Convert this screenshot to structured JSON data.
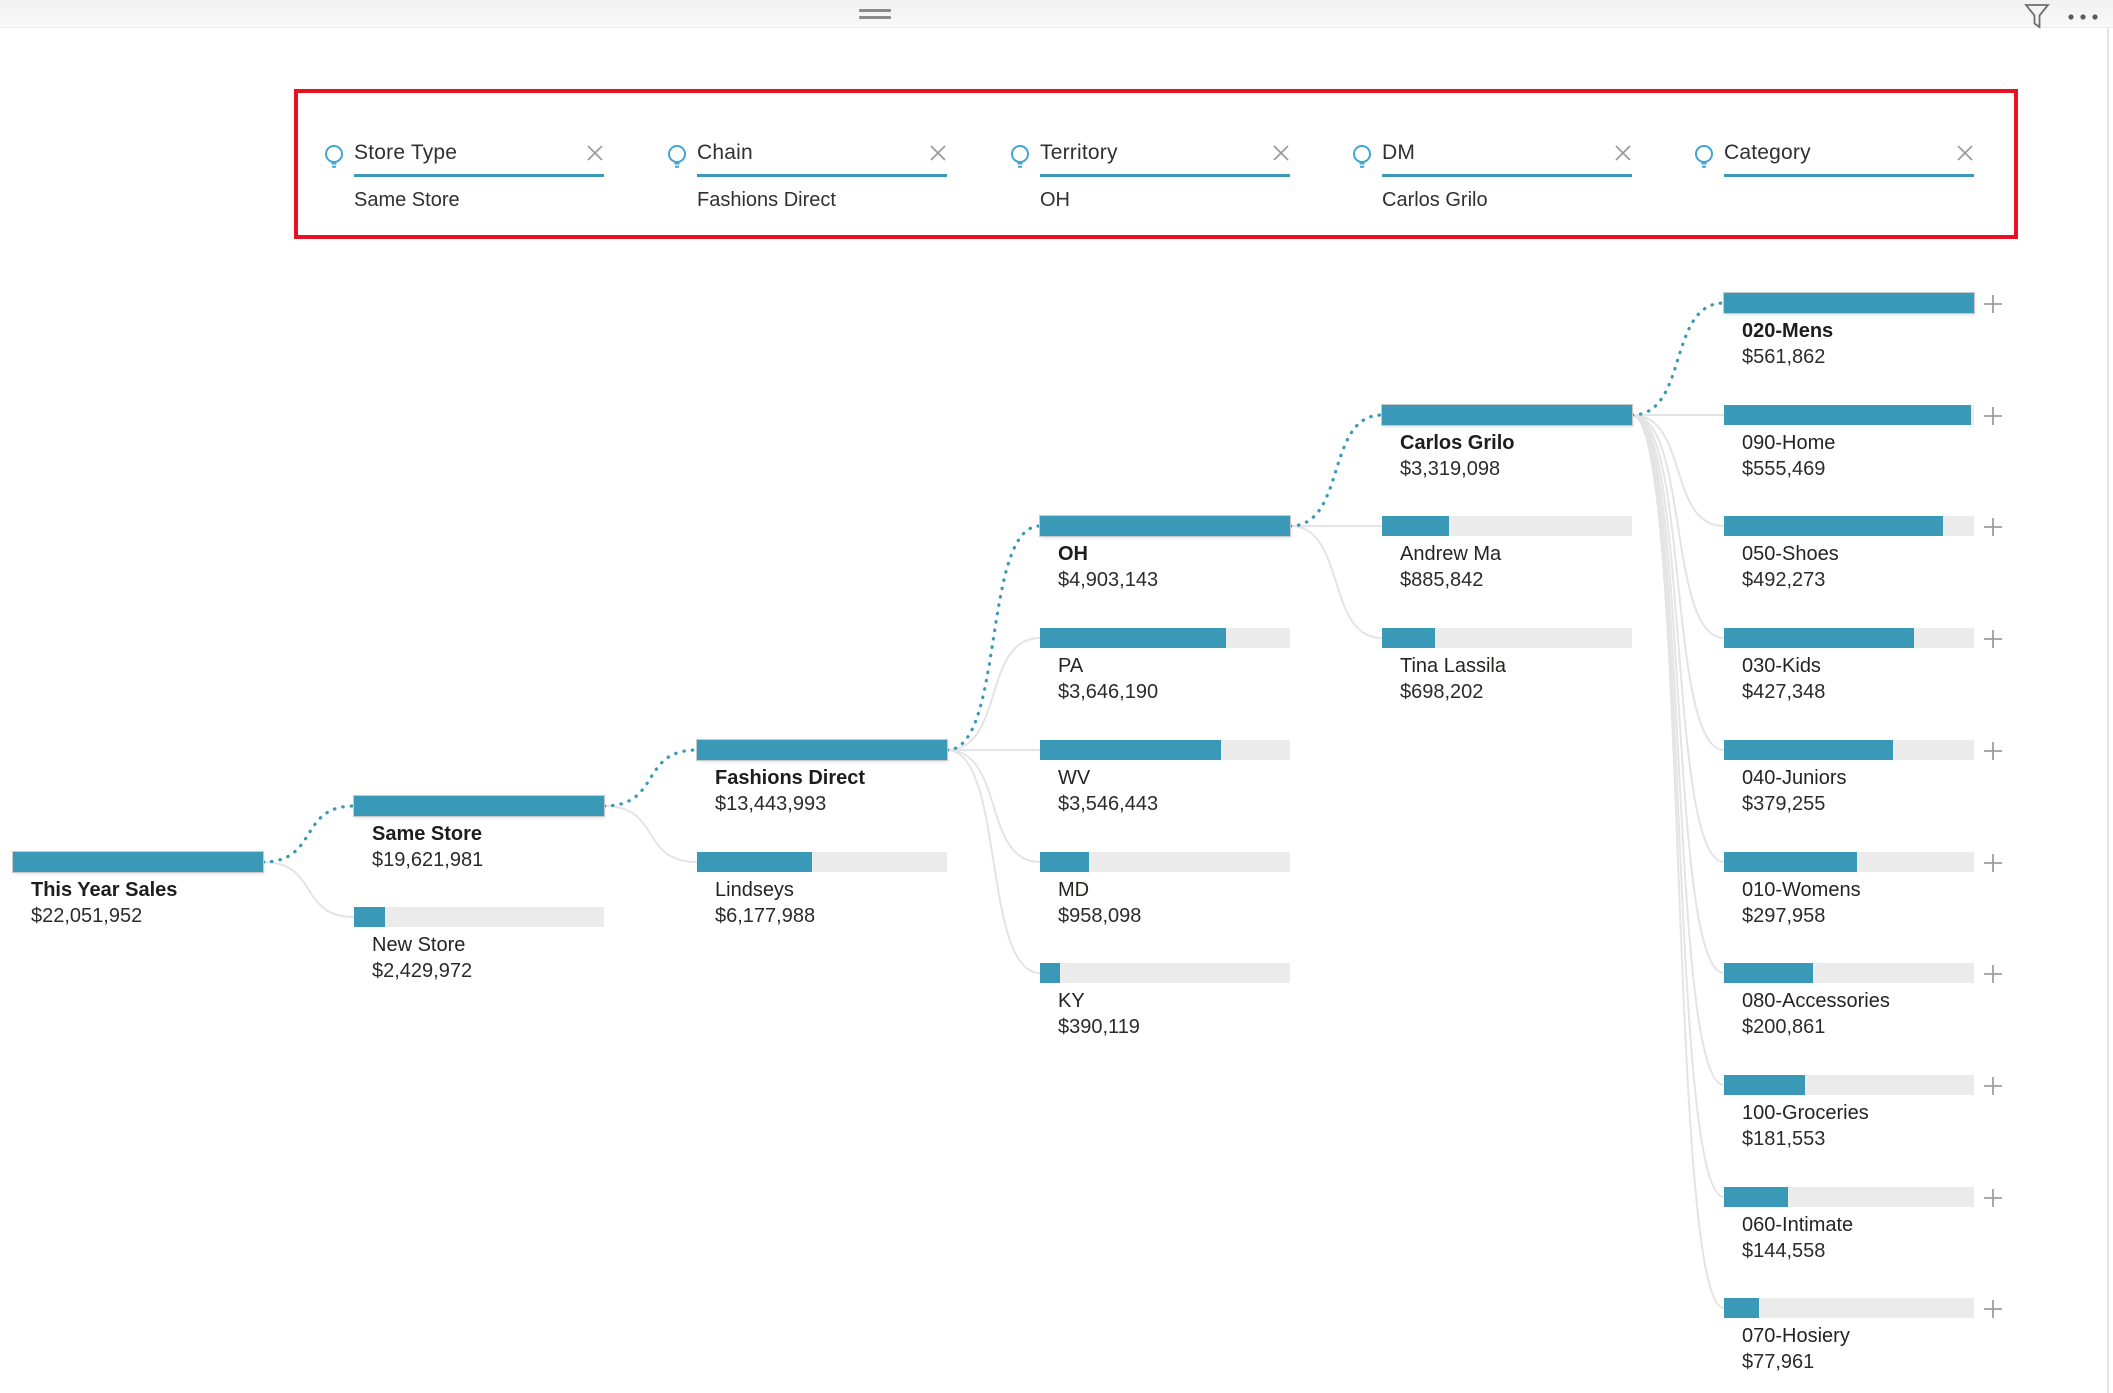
{
  "top_bar": {
    "drag_handle": "visual-resize-handle",
    "filter_icon": "filter-funnel",
    "more_options_icon": "ellipsis"
  },
  "colors": {
    "bar": "#3a99b7",
    "bar_track": "#ebebeb",
    "connector": "#e4e4e4",
    "selected_path": "#3a99b7",
    "accent_underline": "#3a99b7",
    "highlight_border": "#e81123",
    "icon_gray": "#6e6e6e",
    "bulb_blue": "#41a4d4"
  },
  "breadcrumbs": {
    "items": [
      {
        "field": "Store Type",
        "value": "Same Store"
      },
      {
        "field": "Chain",
        "value": "Fashions Direct"
      },
      {
        "field": "Territory",
        "value": "OH"
      },
      {
        "field": "DM",
        "value": "Carlos Grilo"
      },
      {
        "field": "Category",
        "value": ""
      }
    ]
  },
  "chart_data": {
    "type": "decomposition-tree",
    "measure": "This Year Sales",
    "total_value": 22051952,
    "levels": [
      "Store Type",
      "Chain",
      "Territory",
      "DM",
      "Category"
    ],
    "nodes": [
      {
        "id": "this-year-sales",
        "parent": null,
        "field": "Total",
        "label": "This Year Sales",
        "value": 22051952,
        "value_text": "$22,051,952",
        "pct": 100,
        "col": 0,
        "row": 5,
        "bold": true,
        "on_path": false,
        "expandable": false
      },
      {
        "id": "same-store",
        "parent": "this-year-sales",
        "field": "Store Type",
        "label": "Same Store",
        "value": 19621981,
        "value_text": "$19,621,981",
        "pct": 100,
        "col": 1,
        "row": 4.5,
        "bold": true,
        "on_path": true,
        "expandable": false
      },
      {
        "id": "new-store",
        "parent": "this-year-sales",
        "field": "Store Type",
        "label": "New Store",
        "value": 2429972,
        "value_text": "$2,429,972",
        "pct": 12.4,
        "col": 1,
        "row": 5.5,
        "bold": false,
        "on_path": false,
        "expandable": false
      },
      {
        "id": "fashions-direct",
        "parent": "same-store",
        "field": "Chain",
        "label": "Fashions Direct",
        "value": 13443993,
        "value_text": "$13,443,993",
        "pct": 100,
        "col": 2,
        "row": 4,
        "bold": true,
        "on_path": true,
        "expandable": false
      },
      {
        "id": "lindseys",
        "parent": "same-store",
        "field": "Chain",
        "label": "Lindseys",
        "value": 6177988,
        "value_text": "$6,177,988",
        "pct": 46,
        "col": 2,
        "row": 5,
        "bold": false,
        "on_path": false,
        "expandable": false
      },
      {
        "id": "oh",
        "parent": "fashions-direct",
        "field": "Territory",
        "label": "OH",
        "value": 4903143,
        "value_text": "$4,903,143",
        "pct": 100,
        "col": 3,
        "row": 2,
        "bold": true,
        "on_path": true,
        "expandable": false
      },
      {
        "id": "pa",
        "parent": "fashions-direct",
        "field": "Territory",
        "label": "PA",
        "value": 3646190,
        "value_text": "$3,646,190",
        "pct": 74.4,
        "col": 3,
        "row": 3,
        "bold": false,
        "on_path": false,
        "expandable": false
      },
      {
        "id": "wv",
        "parent": "fashions-direct",
        "field": "Territory",
        "label": "WV",
        "value": 3546443,
        "value_text": "$3,546,443",
        "pct": 72.3,
        "col": 3,
        "row": 4,
        "bold": false,
        "on_path": false,
        "expandable": false
      },
      {
        "id": "md",
        "parent": "fashions-direct",
        "field": "Territory",
        "label": "MD",
        "value": 958098,
        "value_text": "$958,098",
        "pct": 19.5,
        "col": 3,
        "row": 5,
        "bold": false,
        "on_path": false,
        "expandable": false
      },
      {
        "id": "ky",
        "parent": "fashions-direct",
        "field": "Territory",
        "label": "KY",
        "value": 390119,
        "value_text": "$390,119",
        "pct": 8,
        "col": 3,
        "row": 6,
        "bold": false,
        "on_path": false,
        "expandable": false
      },
      {
        "id": "carlos-grilo",
        "parent": "oh",
        "field": "DM",
        "label": "Carlos Grilo",
        "value": 3319098,
        "value_text": "$3,319,098",
        "pct": 100,
        "col": 4,
        "row": 1,
        "bold": true,
        "on_path": true,
        "expandable": false
      },
      {
        "id": "andrew-ma",
        "parent": "oh",
        "field": "DM",
        "label": "Andrew Ma",
        "value": 885842,
        "value_text": "$885,842",
        "pct": 26.7,
        "col": 4,
        "row": 2,
        "bold": false,
        "on_path": false,
        "expandable": false
      },
      {
        "id": "tina-lassila",
        "parent": "oh",
        "field": "DM",
        "label": "Tina Lassila",
        "value": 698202,
        "value_text": "$698,202",
        "pct": 21,
        "col": 4,
        "row": 3,
        "bold": false,
        "on_path": false,
        "expandable": false
      },
      {
        "id": "020-mens",
        "parent": "carlos-grilo",
        "field": "Category",
        "label": "020-Mens",
        "value": 561862,
        "value_text": "$561,862",
        "pct": 100,
        "col": 5,
        "row": 0,
        "bold": true,
        "on_path": true,
        "expandable": true
      },
      {
        "id": "090-home",
        "parent": "carlos-grilo",
        "field": "Category",
        "label": "090-Home",
        "value": 555469,
        "value_text": "$555,469",
        "pct": 98.9,
        "col": 5,
        "row": 1,
        "bold": false,
        "on_path": false,
        "expandable": true
      },
      {
        "id": "050-shoes",
        "parent": "carlos-grilo",
        "field": "Category",
        "label": "050-Shoes",
        "value": 492273,
        "value_text": "$492,273",
        "pct": 87.6,
        "col": 5,
        "row": 2,
        "bold": false,
        "on_path": false,
        "expandable": true
      },
      {
        "id": "030-kids",
        "parent": "carlos-grilo",
        "field": "Category",
        "label": "030-Kids",
        "value": 427348,
        "value_text": "$427,348",
        "pct": 76.1,
        "col": 5,
        "row": 3,
        "bold": false,
        "on_path": false,
        "expandable": true
      },
      {
        "id": "040-juniors",
        "parent": "carlos-grilo",
        "field": "Category",
        "label": "040-Juniors",
        "value": 379255,
        "value_text": "$379,255",
        "pct": 67.5,
        "col": 5,
        "row": 4,
        "bold": false,
        "on_path": false,
        "expandable": true
      },
      {
        "id": "010-womens",
        "parent": "carlos-grilo",
        "field": "Category",
        "label": "010-Womens",
        "value": 297958,
        "value_text": "$297,958",
        "pct": 53,
        "col": 5,
        "row": 5,
        "bold": false,
        "on_path": false,
        "expandable": true
      },
      {
        "id": "080-accessories",
        "parent": "carlos-grilo",
        "field": "Category",
        "label": "080-Accessories",
        "value": 200861,
        "value_text": "$200,861",
        "pct": 35.7,
        "col": 5,
        "row": 6,
        "bold": false,
        "on_path": false,
        "expandable": true
      },
      {
        "id": "100-groceries",
        "parent": "carlos-grilo",
        "field": "Category",
        "label": "100-Groceries",
        "value": 181553,
        "value_text": "$181,553",
        "pct": 32.3,
        "col": 5,
        "row": 7,
        "bold": false,
        "on_path": false,
        "expandable": true
      },
      {
        "id": "060-intimate",
        "parent": "carlos-grilo",
        "field": "Category",
        "label": "060-Intimate",
        "value": 144558,
        "value_text": "$144,558",
        "pct": 25.7,
        "col": 5,
        "row": 8,
        "bold": false,
        "on_path": false,
        "expandable": true
      },
      {
        "id": "070-hosiery",
        "parent": "carlos-grilo",
        "field": "Category",
        "label": "070-Hosiery",
        "value": 77961,
        "value_text": "$77,961",
        "pct": 13.9,
        "col": 5,
        "row": 9,
        "bold": false,
        "on_path": false,
        "expandable": true
      }
    ]
  }
}
